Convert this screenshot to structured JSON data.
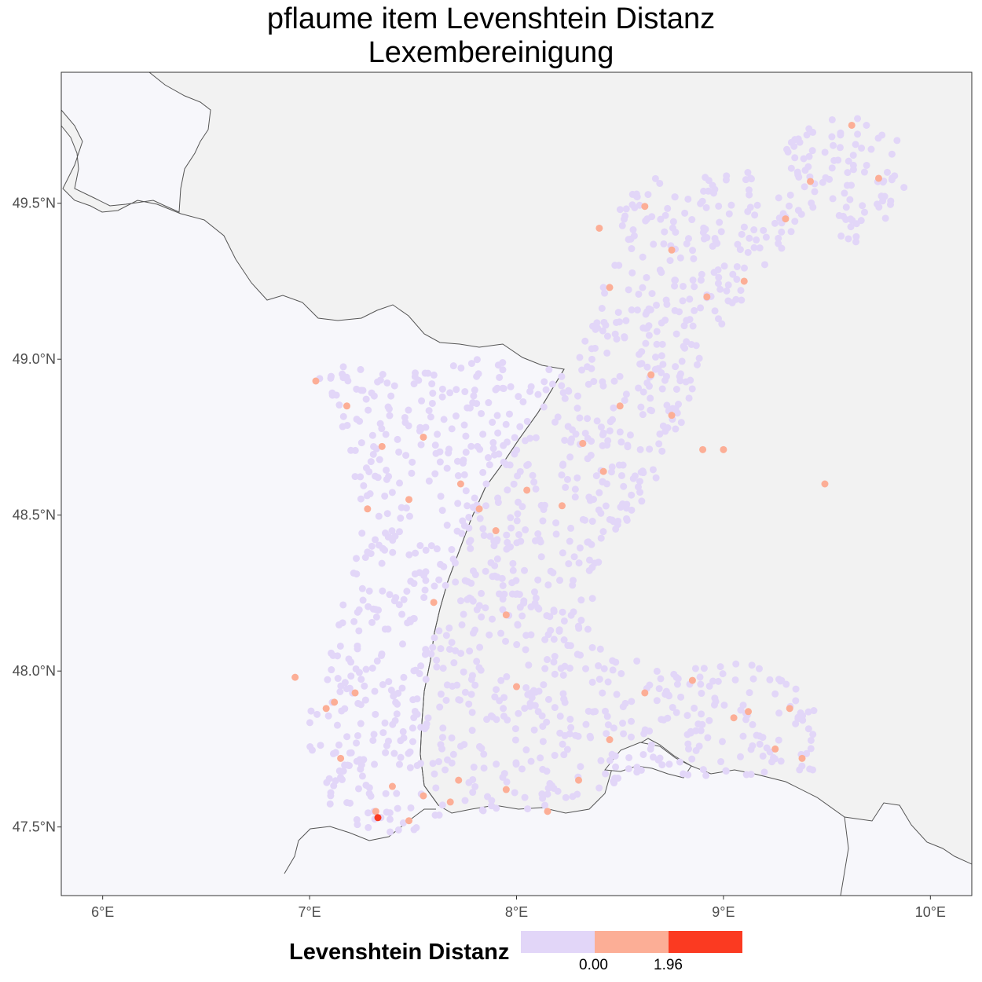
{
  "title": {
    "line1": "pflaume item Levenshtein Distanz",
    "line2": "Lexembereinigung"
  },
  "axes": {
    "x_ticks": [
      "6°E",
      "7°E",
      "8°E",
      "9°E",
      "10°E"
    ],
    "y_ticks": [
      "47.5°N",
      "48.0°N",
      "48.5°N",
      "49.0°N",
      "49.5°N"
    ],
    "xlim": [
      5.8,
      10.2
    ],
    "ylim": [
      47.28,
      49.92
    ]
  },
  "legend": {
    "title": "Levenshtein Distanz",
    "tick_labels": [
      "0.00",
      "1.96"
    ],
    "colors": [
      "#e2d6f8",
      "#fcae96",
      "#fb3a21"
    ]
  },
  "colors": {
    "panel": "#f7f7fb",
    "land": "#f2f2f2",
    "border": "#555555",
    "low": "#e2d6f8",
    "mid": "#fcae96",
    "high": "#fb3a21"
  },
  "chart_data": {
    "type": "scatter",
    "x_unit": "degrees longitude",
    "y_unit": "degrees latitude",
    "x_ticks": [
      6,
      7,
      8,
      9,
      10
    ],
    "y_ticks": [
      47.5,
      48.0,
      48.5,
      49.0,
      49.5
    ],
    "color_scale": {
      "0.00": "#e2d6f8",
      "1.96": "#fcae96",
      "max": "#fb3a21"
    },
    "series": [
      {
        "name": "0.00",
        "points_sample": [
          [
            7.25,
            48.9
          ],
          [
            7.5,
            48.7
          ],
          [
            7.7,
            48.3
          ],
          [
            7.9,
            48.0
          ],
          [
            8.2,
            47.8
          ],
          [
            8.5,
            48.9
          ],
          [
            8.8,
            49.3
          ],
          [
            9.4,
            49.6
          ],
          [
            9.6,
            49.7
          ],
          [
            7.3,
            47.7
          ],
          [
            8.9,
            47.8
          ],
          [
            9.3,
            47.75
          ]
        ]
      },
      {
        "name": "1.96",
        "points": [
          [
            7.03,
            48.93
          ],
          [
            7.18,
            48.85
          ],
          [
            7.35,
            48.72
          ],
          [
            7.55,
            48.75
          ],
          [
            7.48,
            48.55
          ],
          [
            7.73,
            48.6
          ],
          [
            7.82,
            48.52
          ],
          [
            7.9,
            48.45
          ],
          [
            8.05,
            48.58
          ],
          [
            8.22,
            48.53
          ],
          [
            7.28,
            48.52
          ],
          [
            7.6,
            48.22
          ],
          [
            7.95,
            48.18
          ],
          [
            8.32,
            48.73
          ],
          [
            8.42,
            48.64
          ],
          [
            8.5,
            48.85
          ],
          [
            8.65,
            48.95
          ],
          [
            8.75,
            48.82
          ],
          [
            8.9,
            48.71
          ],
          [
            9.0,
            48.71
          ],
          [
            9.49,
            48.6
          ],
          [
            8.4,
            49.42
          ],
          [
            8.62,
            49.49
          ],
          [
            8.75,
            49.35
          ],
          [
            8.92,
            49.2
          ],
          [
            9.1,
            49.25
          ],
          [
            9.3,
            49.45
          ],
          [
            9.42,
            49.57
          ],
          [
            9.75,
            49.58
          ],
          [
            9.62,
            49.75
          ],
          [
            8.45,
            49.23
          ],
          [
            6.93,
            47.98
          ],
          [
            7.08,
            47.88
          ],
          [
            7.15,
            47.72
          ],
          [
            7.32,
            47.55
          ],
          [
            7.4,
            47.63
          ],
          [
            7.55,
            47.6
          ],
          [
            7.68,
            47.58
          ],
          [
            7.95,
            47.62
          ],
          [
            8.15,
            47.55
          ],
          [
            8.45,
            47.78
          ],
          [
            8.62,
            47.93
          ],
          [
            8.85,
            47.97
          ],
          [
            9.12,
            47.87
          ],
          [
            9.25,
            47.75
          ],
          [
            9.38,
            47.72
          ],
          [
            9.32,
            47.88
          ],
          [
            7.22,
            47.93
          ],
          [
            7.48,
            47.52
          ],
          [
            7.72,
            47.65
          ],
          [
            8.0,
            47.95
          ],
          [
            8.3,
            47.65
          ],
          [
            7.12,
            47.9
          ],
          [
            9.05,
            47.85
          ]
        ]
      },
      {
        "name": "max",
        "points": [
          [
            7.33,
            47.53
          ]
        ]
      }
    ]
  }
}
